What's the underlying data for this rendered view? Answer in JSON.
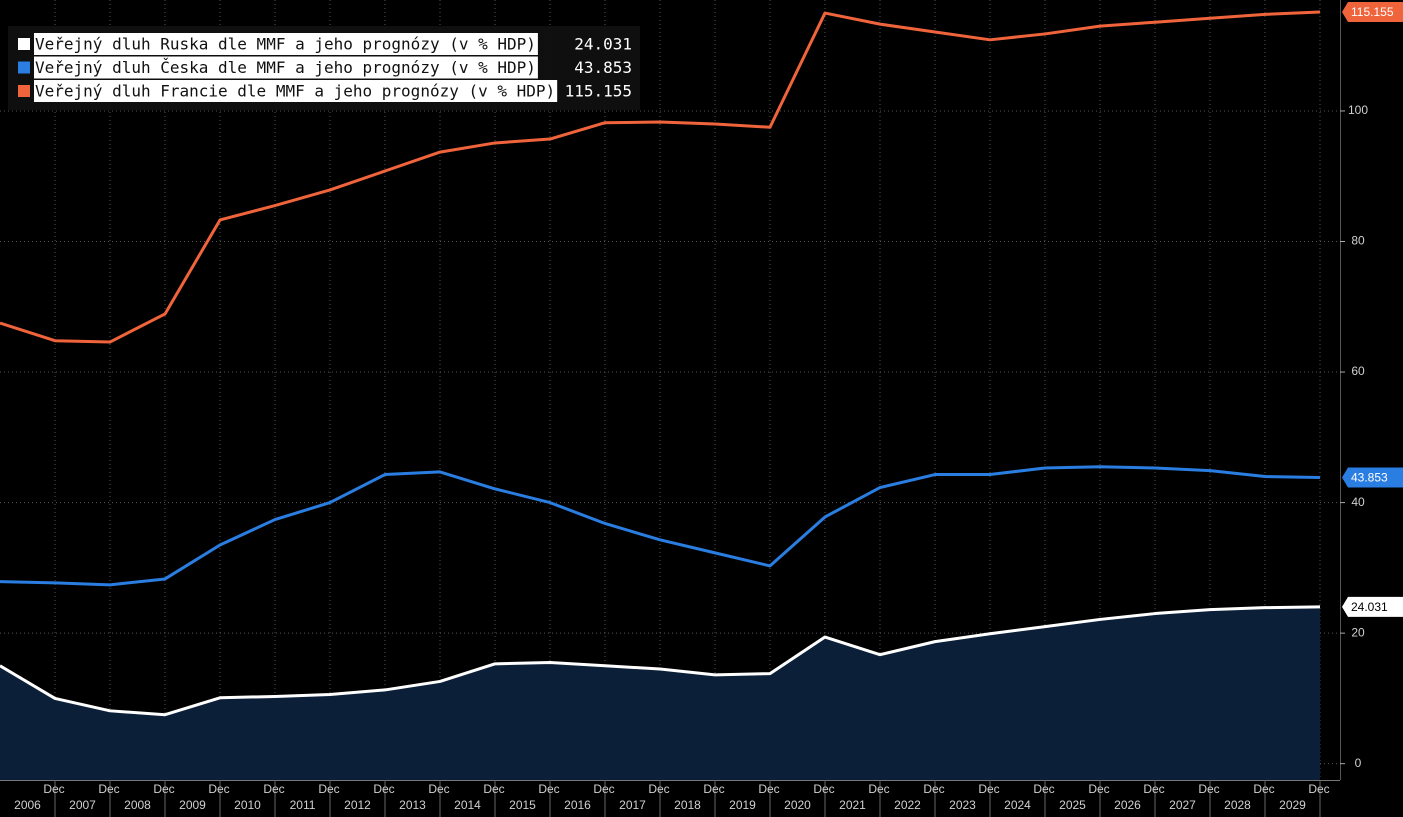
{
  "chart_data": {
    "type": "line",
    "categories": [
      null,
      "2006",
      "2007",
      "2008",
      "2009",
      "2010",
      "2011",
      "2012",
      "2013",
      "2014",
      "2015",
      "2016",
      "2017",
      "2018",
      "2019",
      "2020",
      "2021",
      "2022",
      "2023",
      "2024",
      "2025",
      "2026",
      "2027",
      "2028",
      "2029"
    ],
    "x_tick_label": "Dec",
    "series": [
      {
        "name": "Veřejný dluh Ruska dle MMF a jeho prognózy (v % HDP)",
        "color": "#ffffff",
        "area_color": "#0c1f38",
        "values": [
          15.0,
          10.0,
          8.1,
          7.5,
          10.1,
          10.3,
          10.6,
          11.3,
          12.6,
          15.3,
          15.5,
          15.0,
          14.5,
          13.6,
          13.8,
          19.4,
          16.7,
          18.7,
          19.9,
          21.0,
          22.1,
          23.0,
          23.6,
          23.9,
          24.031
        ]
      },
      {
        "name": "Veřejný dluh Česka dle MMF a jeho prognózy (v % HDP)",
        "color": "#2a7de1",
        "values": [
          27.9,
          27.7,
          27.4,
          28.3,
          33.5,
          37.4,
          40.0,
          44.3,
          44.7,
          42.1,
          40.0,
          36.8,
          34.3,
          32.3,
          30.3,
          37.8,
          42.3,
          44.3,
          44.3,
          45.3,
          45.5,
          45.3,
          44.9,
          44.0,
          43.853
        ]
      },
      {
        "name": "Veřejný dluh Francie dle MMF a jeho prognózy (v % HDP)",
        "color": "#f0643c",
        "values": [
          67.5,
          64.8,
          64.6,
          68.9,
          83.3,
          85.5,
          87.9,
          90.8,
          93.7,
          95.1,
          95.7,
          98.2,
          98.3,
          98.0,
          97.5,
          115.0,
          113.3,
          112.1,
          110.9,
          111.8,
          113.0,
          113.6,
          114.2,
          114.8,
          115.155
        ]
      }
    ],
    "ylim": [
      -2.5,
      117
    ],
    "yticks": [
      0,
      20,
      40,
      60,
      80,
      100
    ],
    "grid": true
  }
}
